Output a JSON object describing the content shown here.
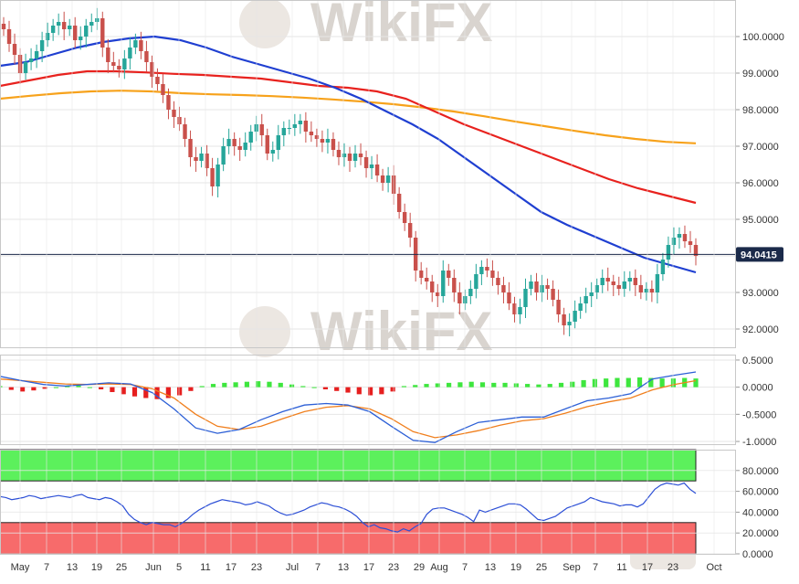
{
  "watermark": "WikiFX",
  "colors": {
    "bull": "#26a69a",
    "bear": "#c9504b",
    "sma50": "#1f3fd1",
    "sma100": "#e8221e",
    "sma200": "#f7a21b",
    "macd_line": "#2c5fd6",
    "signal_line": "#f07f1d",
    "hist_pos": "#3ee63e",
    "hist_neg": "#e61f1f",
    "rsi_line": "#2c4fd6",
    "rsi_overbought": "#5cf05c",
    "rsi_oversold": "#f76b6b",
    "price_tag": "#1b2a4a",
    "grid": "#e6e6e6"
  },
  "chart_data": [
    {
      "type": "candlestick",
      "panel": "price",
      "ylim": [
        91.5,
        101.0
      ],
      "y_ticks": [
        "100.0000",
        "99.0000",
        "98.0000",
        "97.0000",
        "96.0000",
        "95.0000",
        "94.0000",
        "93.0000",
        "92.0000"
      ],
      "current_price": "94.0415",
      "x_labels": [
        "May",
        "7",
        "13",
        "19",
        "25",
        "Jun",
        "5",
        "11",
        "17",
        "23",
        "Jul",
        "7",
        "13",
        "17",
        "23",
        "29",
        "Aug",
        "7",
        "13",
        "19",
        "25",
        "Sep",
        "7",
        "11",
        "17",
        "23",
        "Oct"
      ],
      "ohlc_closes": [
        100.2,
        99.8,
        99.5,
        99.0,
        99.3,
        99.4,
        99.6,
        99.9,
        100.1,
        100.3,
        100.4,
        100.2,
        100.3,
        99.9,
        100.0,
        100.3,
        100.4,
        100.5,
        99.7,
        99.3,
        99.2,
        99.1,
        99.4,
        99.7,
        99.9,
        99.6,
        99.3,
        98.9,
        98.7,
        98.4,
        98.0,
        97.8,
        97.6,
        97.2,
        96.7,
        96.6,
        96.8,
        96.4,
        95.9,
        96.5,
        97.0,
        97.2,
        97.0,
        96.9,
        97.1,
        97.4,
        97.6,
        97.3,
        96.8,
        96.9,
        97.3,
        97.5,
        97.5,
        97.6,
        97.7,
        97.4,
        97.3,
        97.2,
        97.1,
        97.2,
        96.9,
        96.7,
        96.8,
        96.6,
        96.8,
        96.7,
        96.4,
        96.5,
        96.2,
        96.0,
        96.2,
        95.7,
        95.2,
        94.9,
        94.5,
        93.6,
        93.4,
        93.3,
        93.0,
        92.9,
        93.6,
        93.4,
        93.0,
        92.7,
        92.9,
        93.1,
        93.5,
        93.7,
        93.6,
        93.4,
        93.2,
        93.0,
        92.7,
        92.4,
        92.6,
        93.1,
        93.3,
        93.0,
        93.2,
        93.1,
        92.8,
        92.4,
        92.1,
        92.2,
        92.5,
        92.7,
        92.9,
        93.0,
        93.2,
        93.4,
        93.3,
        93.2,
        93.1,
        93.3,
        93.4,
        93.2,
        93.0,
        93.1,
        93.0,
        93.5,
        93.9,
        94.3,
        94.5,
        94.6,
        94.4,
        94.3,
        94.0
      ],
      "sma50": [
        99.2,
        99.3,
        99.5,
        99.7,
        99.85,
        99.95,
        100.0,
        99.9,
        99.7,
        99.45,
        99.25,
        99.05,
        98.85,
        98.6,
        98.3,
        97.95,
        97.6,
        97.2,
        96.7,
        96.2,
        95.7,
        95.2,
        94.85,
        94.55,
        94.25,
        93.95,
        93.75,
        93.55
      ],
      "sma100": [
        98.65,
        98.8,
        98.95,
        99.05,
        99.05,
        99.02,
        98.98,
        98.95,
        98.9,
        98.85,
        98.75,
        98.65,
        98.6,
        98.5,
        98.3,
        97.95,
        97.6,
        97.3,
        97.0,
        96.7,
        96.4,
        96.1,
        95.85,
        95.65,
        95.45
      ],
      "sma200": [
        98.3,
        98.38,
        98.45,
        98.5,
        98.52,
        98.5,
        98.45,
        98.42,
        98.4,
        98.37,
        98.33,
        98.28,
        98.22,
        98.15,
        98.06,
        97.95,
        97.82,
        97.68,
        97.55,
        97.42,
        97.3,
        97.2,
        97.12,
        97.08
      ]
    },
    {
      "type": "bar+line",
      "panel": "macd",
      "ylim": [
        -1.05,
        0.6
      ],
      "y_ticks": [
        "0.5000",
        "0.0000",
        "-0.5000",
        "-1.0000"
      ],
      "series": [
        {
          "role": "histogram",
          "values": [
            0.02,
            -0.05,
            -0.08,
            -0.06,
            -0.03,
            0.0,
            0.02,
            0.03,
            0.0,
            -0.04,
            -0.09,
            -0.13,
            -0.17,
            -0.2,
            -0.22,
            -0.2,
            -0.15,
            -0.07,
            0.02,
            0.06,
            0.08,
            0.09,
            0.1,
            0.11,
            0.1,
            0.08,
            0.05,
            0.02,
            0.0,
            -0.04,
            -0.07,
            -0.1,
            -0.13,
            -0.15,
            -0.13,
            -0.08,
            0.02,
            0.04,
            0.06,
            0.07,
            0.08,
            0.09,
            0.1,
            0.09,
            0.08,
            0.08,
            0.07,
            0.06,
            0.05,
            0.06,
            0.08,
            0.1,
            0.13,
            0.15,
            0.16,
            0.17,
            0.17,
            0.18,
            0.17,
            0.16,
            0.16,
            0.17,
            0.16
          ]
        },
        {
          "role": "macd",
          "values": [
            0.2,
            0.12,
            0.05,
            0.02,
            0.05,
            0.08,
            0.06,
            -0.1,
            -0.4,
            -0.75,
            -0.85,
            -0.78,
            -0.6,
            -0.45,
            -0.33,
            -0.3,
            -0.33,
            -0.45,
            -0.72,
            -0.98,
            -1.02,
            -0.82,
            -0.65,
            -0.6,
            -0.55,
            -0.55,
            -0.4,
            -0.25,
            -0.2,
            -0.12,
            0.15,
            0.22,
            0.28
          ]
        },
        {
          "role": "signal",
          "values": [
            0.15,
            0.12,
            0.09,
            0.06,
            0.05,
            0.06,
            0.05,
            -0.03,
            -0.2,
            -0.5,
            -0.72,
            -0.78,
            -0.72,
            -0.58,
            -0.45,
            -0.37,
            -0.34,
            -0.4,
            -0.58,
            -0.82,
            -0.93,
            -0.88,
            -0.8,
            -0.7,
            -0.62,
            -0.58,
            -0.48,
            -0.36,
            -0.27,
            -0.2,
            -0.05,
            0.05,
            0.12
          ]
        }
      ]
    },
    {
      "type": "line",
      "panel": "rsi",
      "ylim": [
        0,
        100
      ],
      "y_ticks": [
        "80.0000",
        "60.0000",
        "40.0000",
        "20.0000",
        "0.0000"
      ],
      "bands": {
        "overbought": [
          70,
          100
        ],
        "oversold": [
          0,
          30
        ]
      },
      "values": [
        55,
        54,
        52,
        53,
        54,
        56,
        55,
        53,
        54,
        55,
        56,
        55,
        54,
        56,
        57,
        54,
        53,
        52,
        54,
        53,
        50,
        46,
        38,
        33,
        30,
        28,
        30,
        29,
        28,
        28,
        26,
        29,
        33,
        38,
        42,
        45,
        48,
        50,
        52,
        51,
        50,
        49,
        47,
        48,
        50,
        48,
        46,
        42,
        39,
        37,
        38,
        40,
        42,
        45,
        47,
        49,
        48,
        46,
        45,
        43,
        40,
        36,
        30,
        26,
        28,
        25,
        24,
        22,
        21,
        24,
        22,
        26,
        29,
        38,
        43,
        44,
        44,
        42,
        40,
        38,
        35,
        31,
        42,
        40,
        42,
        44,
        46,
        48,
        48,
        47,
        43,
        38,
        33,
        32,
        34,
        36,
        40,
        44,
        46,
        48,
        50,
        54,
        52,
        50,
        49,
        48,
        46,
        47,
        47,
        45,
        48,
        55,
        62,
        66,
        68,
        67,
        66,
        68,
        62,
        58
      ]
    }
  ]
}
